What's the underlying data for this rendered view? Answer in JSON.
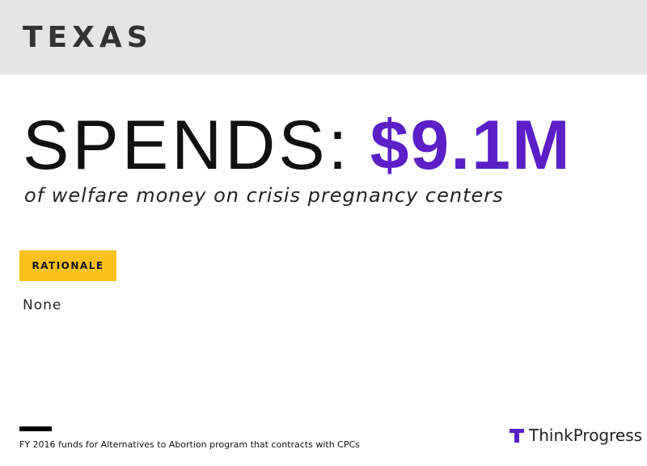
{
  "header": {
    "title": "TEXAS"
  },
  "headline": {
    "label": "SPENDS:",
    "amount": "$9.1M",
    "subtitle": "of welfare money on crisis pregnancy centers"
  },
  "rationale": {
    "tag": "RATIONALE",
    "text": "None"
  },
  "footer": {
    "note": "FY 2016 funds for Alternatives to Abortion program that contracts with CPCs",
    "brand": "ThinkProgress"
  }
}
